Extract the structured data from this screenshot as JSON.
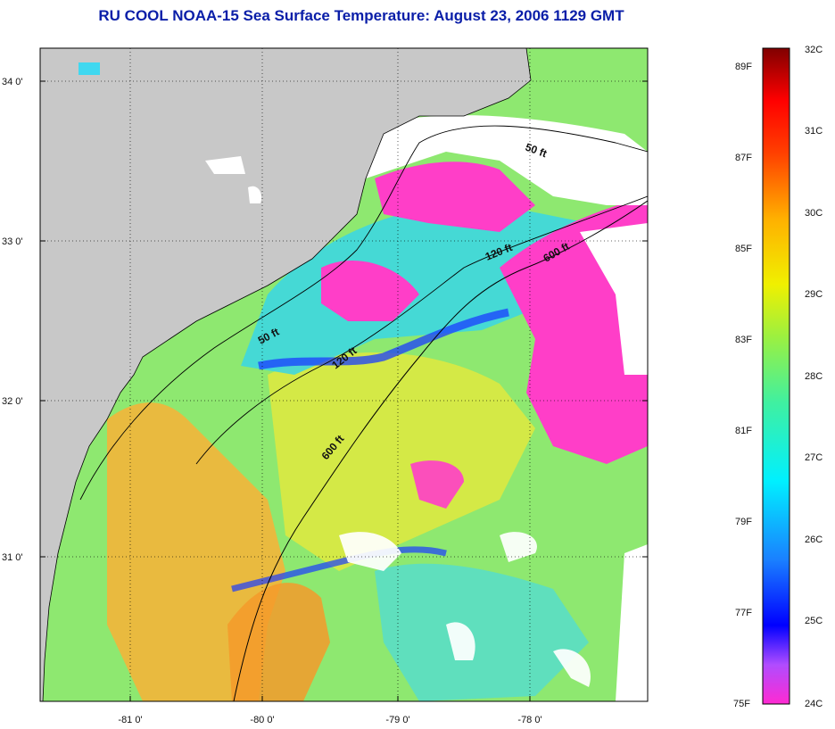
{
  "title": "RU COOL  NOAA-15  Sea Surface Temperature:  August 23, 2006 1129 GMT",
  "map": {
    "lat_labels": [
      "34 0'",
      "33 0'",
      "32 0'",
      "31 0'"
    ],
    "lon_labels": [
      "-81 0'",
      "-80 0'",
      "-79 0'",
      "-78 0'"
    ],
    "contour_labels": [
      "50 ft",
      "120 ft",
      "600 ft",
      "50 ft",
      "120 ft",
      "600 ft"
    ],
    "colors": {
      "land": "#c8c8c8",
      "cloud": "#ffffff",
      "cold": "#ff3ec8",
      "warm": "#f5a623",
      "mid": "#8ef05a",
      "cool": "#2fd0e8",
      "blue": "#1a4bff"
    }
  },
  "colorbar": {
    "fahrenheit_labels": [
      "89F",
      "87F",
      "85F",
      "83F",
      "81F",
      "79F",
      "77F",
      "75F"
    ],
    "celsius_labels": [
      "32C",
      "31C",
      "30C",
      "29C",
      "28C",
      "27C",
      "26C",
      "25C",
      "24C"
    ]
  }
}
